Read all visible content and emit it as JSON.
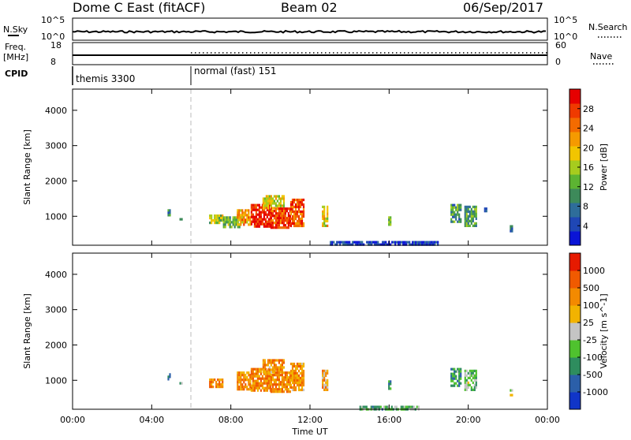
{
  "header": {
    "station": "Dome C East (fitACF)",
    "beam": "Beam 02",
    "date": "06/Sep/2017"
  },
  "noise_panel": {
    "left_label": "N.Sky",
    "left_ticks": [
      "10^5",
      "10^0"
    ],
    "right_label": "N.Search",
    "right_ticks": [
      "10^5",
      "10^0"
    ]
  },
  "freq_panel": {
    "left_label_1": "Freq.",
    "left_label_2": "[MHz]",
    "left_ticks": [
      "18",
      "8"
    ],
    "right_label": "Nave",
    "right_ticks": [
      "60",
      "0"
    ]
  },
  "cpid_panel": {
    "label": "CPID",
    "segments": [
      {
        "name": "themis 3300",
        "start_hour": 0.0
      },
      {
        "name": "normal (fast) 151",
        "start_hour": 6.0
      }
    ]
  },
  "x_axis": {
    "label": "Time UT",
    "ticks": [
      "00:00",
      "04:00",
      "08:00",
      "12:00",
      "16:00",
      "20:00",
      "00:00"
    ]
  },
  "chart_data": [
    {
      "type": "heatmap",
      "name": "power",
      "ylabel": "Slant Range [km]",
      "yticks": [
        "1000",
        "2000",
        "3000",
        "4000"
      ],
      "ylim": [
        180,
        4600
      ],
      "xlim_hours": [
        0,
        24
      ],
      "colorbar_label": "Power [dB]",
      "colorbar_ticks": [
        "4",
        "8",
        "12",
        "16",
        "20",
        "24",
        "28"
      ],
      "colorscale": [
        "#0a14d6",
        "#1f47b5",
        "#2e6d9a",
        "#3d8a5a",
        "#5cb432",
        "#a6cc1e",
        "#f2c500",
        "#f59a00",
        "#f36b00",
        "#ef3a00",
        "#e60000"
      ],
      "blobs": [
        {
          "t0": 4.8,
          "t1": 4.9,
          "r0": 1050,
          "r1": 1200,
          "v": 0.25
        },
        {
          "t0": 5.4,
          "t1": 5.5,
          "r0": 900,
          "r1": 950,
          "v": 0.3
        },
        {
          "t0": 6.9,
          "t1": 7.6,
          "r0": 800,
          "r1": 1050,
          "v": 0.5
        },
        {
          "t0": 7.6,
          "t1": 8.4,
          "r0": 700,
          "r1": 1000,
          "v": 0.4
        },
        {
          "t0": 8.3,
          "t1": 9.0,
          "r0": 750,
          "r1": 1200,
          "v": 0.7
        },
        {
          "t0": 9.0,
          "t1": 10.0,
          "r0": 700,
          "r1": 1350,
          "v": 0.95
        },
        {
          "t0": 9.6,
          "t1": 10.7,
          "r0": 1200,
          "r1": 1600,
          "v": 0.55
        },
        {
          "t0": 10.0,
          "t1": 11.0,
          "r0": 650,
          "r1": 1250,
          "v": 0.9
        },
        {
          "t0": 11.0,
          "t1": 11.7,
          "r0": 700,
          "r1": 1500,
          "v": 0.85
        },
        {
          "t0": 12.6,
          "t1": 12.85,
          "r0": 700,
          "r1": 1300,
          "v": 0.6
        },
        {
          "t0": 15.95,
          "t1": 16.1,
          "r0": 750,
          "r1": 1000,
          "v": 0.45
        },
        {
          "t0": 19.1,
          "t1": 19.6,
          "r0": 850,
          "r1": 1350,
          "v": 0.3
        },
        {
          "t0": 19.8,
          "t1": 20.4,
          "r0": 750,
          "r1": 1300,
          "v": 0.35
        },
        {
          "t0": 20.8,
          "t1": 20.9,
          "r0": 1150,
          "r1": 1250,
          "v": 0.2
        },
        {
          "t0": 22.1,
          "t1": 22.2,
          "r0": 600,
          "r1": 750,
          "v": 0.2
        },
        {
          "t0": 13.0,
          "t1": 18.5,
          "r0": 200,
          "r1": 300,
          "v": 0.05
        }
      ]
    },
    {
      "type": "heatmap",
      "name": "velocity",
      "ylabel": "Slant Range [km]",
      "yticks": [
        "1000",
        "2000",
        "3000",
        "4000"
      ],
      "ylim": [
        180,
        4600
      ],
      "xlim_hours": [
        0,
        24
      ],
      "colorbar_label": "Velocity [m s^-1]",
      "colorbar_ticks": [
        "1000",
        "500",
        "100",
        "25",
        "-25",
        "-100",
        "-500",
        "-1000"
      ],
      "colorscale": [
        "#1035c8",
        "#2b5fa9",
        "#2e8d5e",
        "#4fc22e",
        "#c4c4c4",
        "#f2b300",
        "#f38a00",
        "#f05a00",
        "#e61a00"
      ],
      "blobs": [
        {
          "t0": 4.8,
          "t1": 4.9,
          "r0": 1050,
          "r1": 1200,
          "v": 0.15
        },
        {
          "t0": 5.4,
          "t1": 5.5,
          "r0": 900,
          "r1": 950,
          "v": 0.4
        },
        {
          "t0": 6.9,
          "t1": 7.6,
          "r0": 800,
          "r1": 1050,
          "v": 0.75
        },
        {
          "t0": 8.3,
          "t1": 9.0,
          "r0": 750,
          "r1": 1250,
          "v": 0.75
        },
        {
          "t0": 9.0,
          "t1": 10.0,
          "r0": 700,
          "r1": 1350,
          "v": 0.75
        },
        {
          "t0": 9.6,
          "t1": 10.7,
          "r0": 1200,
          "r1": 1600,
          "v": 0.72
        },
        {
          "t0": 10.0,
          "t1": 11.0,
          "r0": 650,
          "r1": 1250,
          "v": 0.75
        },
        {
          "t0": 11.0,
          "t1": 11.7,
          "r0": 700,
          "r1": 1500,
          "v": 0.72
        },
        {
          "t0": 12.6,
          "t1": 12.85,
          "r0": 700,
          "r1": 1300,
          "v": 0.7
        },
        {
          "t0": 15.95,
          "t1": 16.1,
          "r0": 750,
          "r1": 1000,
          "v": 0.25
        },
        {
          "t0": 19.1,
          "t1": 19.6,
          "r0": 850,
          "r1": 1350,
          "v": 0.3
        },
        {
          "t0": 19.8,
          "t1": 20.4,
          "r0": 750,
          "r1": 1300,
          "v": 0.4
        },
        {
          "t0": 22.1,
          "t1": 22.2,
          "r0": 600,
          "r1": 750,
          "v": 0.55
        },
        {
          "t0": 14.5,
          "t1": 17.5,
          "r0": 200,
          "r1": 280,
          "v": 0.35
        }
      ]
    }
  ]
}
